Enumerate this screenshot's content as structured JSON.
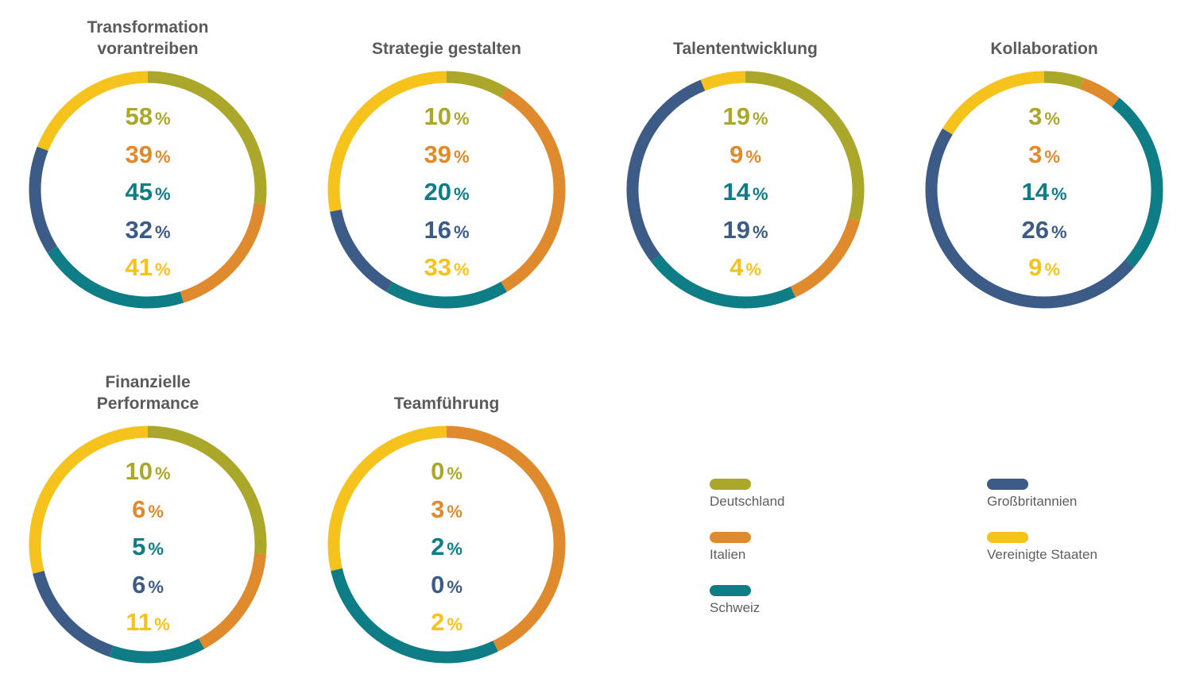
{
  "colors": {
    "Deutschland": "#aba72b",
    "Italien": "#df8a2d",
    "Schweiz": "#0e7d85",
    "Großbritannien": "#3c5b86",
    "Vereinigte Staaten": "#f6c21c"
  },
  "percent_symbol": "%",
  "chart_data": [
    {
      "type": "pie",
      "title": "Transformation\nvorantreiben",
      "categories": [
        "Deutschland",
        "Italien",
        "Schweiz",
        "Großbritannien",
        "Vereinigte Staaten"
      ],
      "values": [
        58,
        39,
        45,
        32,
        41
      ]
    },
    {
      "type": "pie",
      "title": "Strategie gestalten",
      "categories": [
        "Deutschland",
        "Italien",
        "Schweiz",
        "Großbritannien",
        "Vereinigte Staaten"
      ],
      "values": [
        10,
        39,
        20,
        16,
        33
      ]
    },
    {
      "type": "pie",
      "title": "Talententwicklung",
      "categories": [
        "Deutschland",
        "Italien",
        "Schweiz",
        "Großbritannien",
        "Vereinigte Staaten"
      ],
      "values": [
        19,
        9,
        14,
        19,
        4
      ]
    },
    {
      "type": "pie",
      "title": "Kollaboration",
      "categories": [
        "Deutschland",
        "Italien",
        "Schweiz",
        "Großbritannien",
        "Vereinigte Staaten"
      ],
      "values": [
        3,
        3,
        14,
        26,
        9
      ]
    },
    {
      "type": "pie",
      "title": "Finanzielle\nPerformance",
      "categories": [
        "Deutschland",
        "Italien",
        "Schweiz",
        "Großbritannien",
        "Vereinigte Staaten"
      ],
      "values": [
        10,
        6,
        5,
        6,
        11
      ]
    },
    {
      "type": "pie",
      "title": "Teamführung",
      "categories": [
        "Deutschland",
        "Italien",
        "Schweiz",
        "Großbritannien",
        "Vereinigte Staaten"
      ],
      "values": [
        0,
        3,
        2,
        0,
        2
      ]
    }
  ],
  "legend": {
    "items": [
      {
        "label": "Deutschland",
        "color": "#aba72b"
      },
      {
        "label": "Italien",
        "color": "#df8a2d"
      },
      {
        "label": "Schweiz",
        "color": "#0e7d85"
      },
      {
        "label": "Großbritannien",
        "color": "#3c5b86"
      },
      {
        "label": "Vereinigte Staaten",
        "color": "#f6c21c"
      }
    ]
  }
}
